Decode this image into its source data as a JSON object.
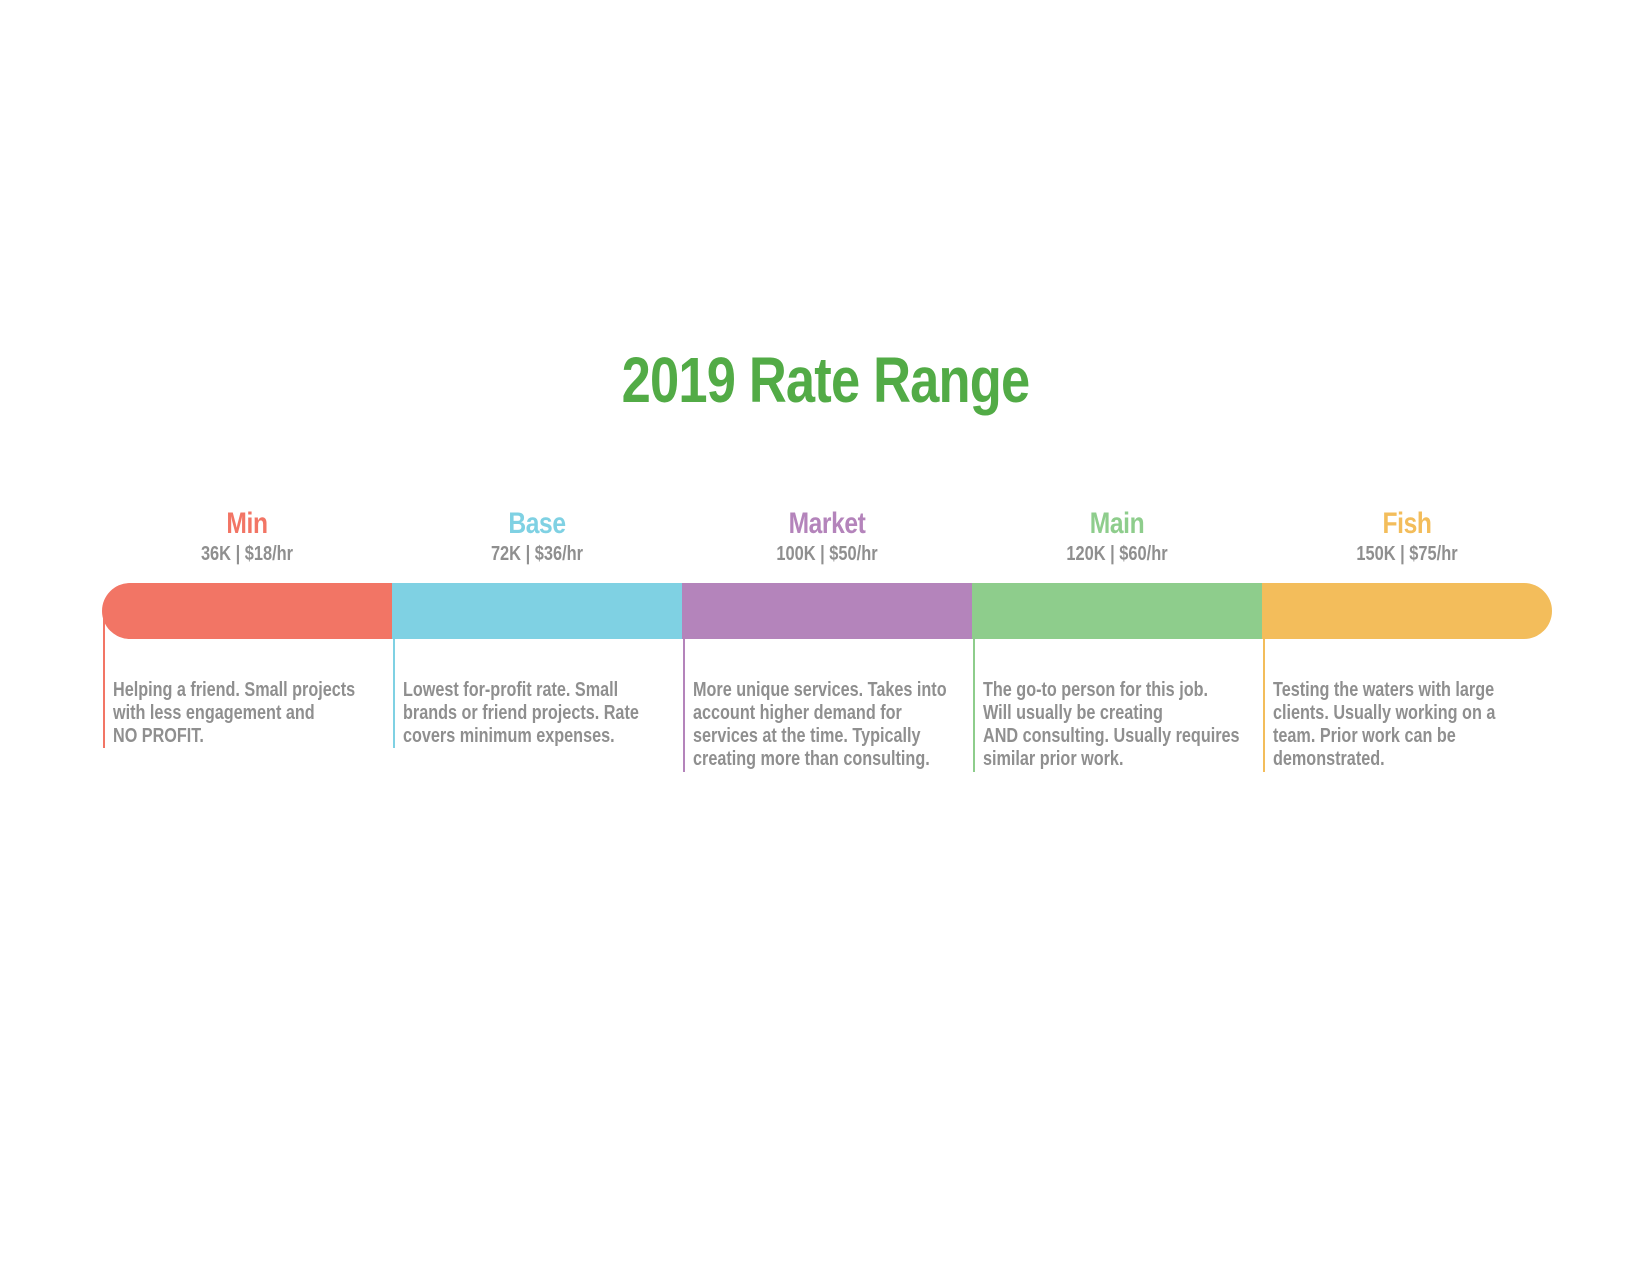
{
  "title": "2019 Rate Range",
  "title_color": "#52ab46",
  "tiers": [
    {
      "name": "Min",
      "rate": "36K | $18/hr",
      "color": "#f27565",
      "description": "Helping a friend. Small projects\nwith less engagement and\nNO PROFIT."
    },
    {
      "name": "Base",
      "rate": "72K | $36/hr",
      "color": "#7fd1e3",
      "description": "Lowest for-profit rate. Small\nbrands or friend projects. Rate\ncovers minimum expenses."
    },
    {
      "name": "Market",
      "rate": "100K | $50/hr",
      "color": "#b484bb",
      "description": "More unique services. Takes into\naccount higher demand for\nservices at the time. Typically\ncreating more than consulting."
    },
    {
      "name": "Main",
      "rate": "120K | $60/hr",
      "color": "#8ecd8c",
      "description": "The go-to person for this job.\nWill usually be creating\nAND consulting. Usually requires\nsimilar prior work."
    },
    {
      "name": "Fish",
      "rate": "150K | $75/hr",
      "color": "#f3bd5b",
      "description": "Testing the waters with large\nclients. Usually working on a\nteam. Prior work can be\ndemonstrated."
    }
  ]
}
